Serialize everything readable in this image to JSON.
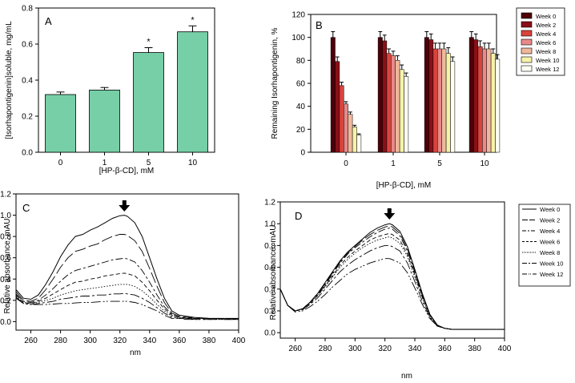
{
  "chart_data": [
    {
      "id": "A",
      "type": "bar",
      "panel_label": "A",
      "ylabel": "[Isorhapontigenin]soluble, mg/mL",
      "xlabel": "[HP-β-CD], mM",
      "categories": [
        "0",
        "1",
        "5",
        "10"
      ],
      "values": [
        0.32,
        0.345,
        0.553,
        0.668
      ],
      "errors": [
        0.014,
        0.014,
        0.027,
        0.033
      ],
      "annotations": [
        "",
        "",
        "*",
        "*"
      ],
      "ylim": [
        0,
        0.8
      ],
      "yticks": [
        "0.0",
        "0.2",
        "0.4",
        "0.6",
        "0.8"
      ],
      "color": "#76cfa6"
    },
    {
      "id": "B",
      "type": "bar",
      "panel_label": "B",
      "ylabel": "Remaining Isorhapontigenin, %",
      "xlabel": "[HP-β-CD], mM",
      "categories": [
        "0",
        "1",
        "5",
        "10"
      ],
      "ylim": [
        0,
        120
      ],
      "yticks": [
        "0",
        "20",
        "40",
        "60",
        "80",
        "100",
        "120"
      ],
      "series": [
        {
          "name": "Week 0",
          "color": "#4d0008",
          "values": [
            100,
            100,
            100,
            100
          ],
          "errors": [
            5,
            5,
            5,
            5
          ]
        },
        {
          "name": "Week 2",
          "color": "#8a0f17",
          "values": [
            79,
            97,
            98,
            98
          ],
          "errors": [
            4,
            5,
            5,
            5
          ]
        },
        {
          "name": "Week 4",
          "color": "#d8443c",
          "values": [
            58,
            86,
            90,
            92
          ],
          "errors": [
            3,
            4,
            5,
            5
          ]
        },
        {
          "name": "Week 6",
          "color": "#e88a8a",
          "values": [
            42,
            84,
            90,
            90
          ],
          "errors": [
            2,
            4,
            5,
            5
          ]
        },
        {
          "name": "Week 8",
          "color": "#f0b89a",
          "values": [
            33,
            80,
            90,
            90
          ],
          "errors": [
            2,
            4,
            5,
            5
          ]
        },
        {
          "name": "Week 10",
          "color": "#f6f2a8",
          "values": [
            22,
            72,
            86,
            86
          ],
          "errors": [
            1.5,
            4,
            5,
            4
          ]
        },
        {
          "name": "Week 12",
          "color": "#fffff4",
          "values": [
            15,
            66,
            79,
            81
          ],
          "errors": [
            1,
            3,
            4,
            4
          ]
        }
      ]
    },
    {
      "id": "C",
      "type": "line",
      "panel_label": "C",
      "ylabel": "Relative absorbance, mAU",
      "xlabel": "nm",
      "xlim": [
        250,
        400
      ],
      "ylim": [
        -0.08,
        1.2
      ],
      "xticks": [
        "260",
        "280",
        "300",
        "320",
        "340",
        "360",
        "380",
        "400"
      ],
      "yticks": [
        "0.0",
        "0.2",
        "0.4",
        "0.6",
        "0.8",
        "1.0",
        "1.2"
      ],
      "arrow_at_nm": 323,
      "x": [
        250,
        255,
        260,
        265,
        270,
        275,
        280,
        285,
        290,
        295,
        300,
        305,
        310,
        315,
        320,
        323,
        325,
        330,
        335,
        340,
        345,
        350,
        355,
        360,
        365,
        370,
        380,
        390,
        400
      ],
      "series": [
        {
          "name": "Week 0",
          "values": [
            0.3,
            0.22,
            0.21,
            0.25,
            0.35,
            0.47,
            0.61,
            0.72,
            0.8,
            0.82,
            0.86,
            0.89,
            0.93,
            0.97,
            0.995,
            1.0,
            0.99,
            0.93,
            0.8,
            0.6,
            0.4,
            0.22,
            0.1,
            0.06,
            0.05,
            0.04,
            0.03,
            0.03,
            0.03
          ]
        },
        {
          "name": "Week 2",
          "values": [
            0.28,
            0.2,
            0.19,
            0.22,
            0.3,
            0.4,
            0.51,
            0.6,
            0.66,
            0.68,
            0.71,
            0.73,
            0.77,
            0.8,
            0.82,
            0.82,
            0.81,
            0.76,
            0.66,
            0.5,
            0.33,
            0.18,
            0.08,
            0.05,
            0.04,
            0.04,
            0.03,
            0.03,
            0.03
          ]
        },
        {
          "name": "Week 4",
          "values": [
            0.26,
            0.19,
            0.18,
            0.2,
            0.25,
            0.31,
            0.38,
            0.44,
            0.48,
            0.5,
            0.52,
            0.54,
            0.56,
            0.58,
            0.59,
            0.595,
            0.59,
            0.56,
            0.48,
            0.37,
            0.25,
            0.14,
            0.07,
            0.04,
            0.04,
            0.03,
            0.03,
            0.03,
            0.03
          ]
        },
        {
          "name": "Week 6",
          "values": [
            0.25,
            0.18,
            0.17,
            0.19,
            0.22,
            0.26,
            0.3,
            0.34,
            0.37,
            0.38,
            0.4,
            0.41,
            0.43,
            0.44,
            0.45,
            0.455,
            0.45,
            0.43,
            0.37,
            0.29,
            0.2,
            0.12,
            0.06,
            0.04,
            0.03,
            0.03,
            0.03,
            0.03,
            0.02
          ]
        },
        {
          "name": "Week 8",
          "values": [
            0.24,
            0.18,
            0.17,
            0.18,
            0.2,
            0.22,
            0.25,
            0.27,
            0.29,
            0.3,
            0.31,
            0.32,
            0.33,
            0.34,
            0.35,
            0.35,
            0.35,
            0.33,
            0.29,
            0.23,
            0.16,
            0.1,
            0.05,
            0.04,
            0.03,
            0.03,
            0.03,
            0.02,
            0.02
          ]
        },
        {
          "name": "Week 10",
          "values": [
            0.23,
            0.17,
            0.16,
            0.17,
            0.18,
            0.19,
            0.21,
            0.22,
            0.23,
            0.24,
            0.24,
            0.25,
            0.25,
            0.26,
            0.26,
            0.265,
            0.26,
            0.25,
            0.22,
            0.18,
            0.13,
            0.08,
            0.04,
            0.03,
            0.03,
            0.02,
            0.02,
            0.02,
            0.02
          ]
        },
        {
          "name": "Week 12",
          "values": [
            0.22,
            0.17,
            0.16,
            0.16,
            0.16,
            0.165,
            0.17,
            0.17,
            0.175,
            0.18,
            0.18,
            0.185,
            0.19,
            0.19,
            0.19,
            0.19,
            0.19,
            0.18,
            0.16,
            0.13,
            0.1,
            0.06,
            0.03,
            0.03,
            0.02,
            0.02,
            0.02,
            0.02,
            0.02
          ]
        }
      ]
    },
    {
      "id": "D",
      "type": "line",
      "panel_label": "D",
      "ylabel": "Relative absorbance, mAU",
      "xlabel": "nm",
      "xlim": [
        250,
        400
      ],
      "ylim": [
        -0.05,
        1.2
      ],
      "xticks": [
        "260",
        "280",
        "300",
        "320",
        "340",
        "360",
        "380",
        "400"
      ],
      "yticks": [
        "0.0",
        "0.2",
        "0.4",
        "0.6",
        "0.8",
        "1.0",
        "1.2"
      ],
      "arrow_at_nm": 323,
      "legend": [
        "Week 0",
        "Week 2",
        "Week 4",
        "Week 6",
        "Week 8",
        "Week 10",
        "Week 12"
      ],
      "x": [
        250,
        255,
        260,
        265,
        270,
        275,
        280,
        285,
        290,
        295,
        300,
        305,
        310,
        315,
        320,
        323,
        325,
        330,
        335,
        340,
        345,
        350,
        355,
        360,
        365,
        370,
        380,
        390,
        400
      ],
      "series": [
        {
          "name": "Week 0",
          "values": [
            0.4,
            0.25,
            0.2,
            0.22,
            0.28,
            0.36,
            0.46,
            0.56,
            0.66,
            0.74,
            0.8,
            0.86,
            0.92,
            0.96,
            0.99,
            1.0,
            0.99,
            0.93,
            0.79,
            0.58,
            0.36,
            0.17,
            0.07,
            0.04,
            0.03,
            0.03,
            0.03,
            0.03,
            0.03
          ]
        },
        {
          "name": "Week 2",
          "values": [
            0.4,
            0.25,
            0.2,
            0.22,
            0.28,
            0.36,
            0.45,
            0.55,
            0.65,
            0.73,
            0.79,
            0.85,
            0.9,
            0.94,
            0.97,
            0.98,
            0.97,
            0.91,
            0.77,
            0.57,
            0.35,
            0.17,
            0.07,
            0.04,
            0.03,
            0.03,
            0.03,
            0.03,
            0.03
          ]
        },
        {
          "name": "Week 4",
          "values": [
            0.4,
            0.25,
            0.2,
            0.22,
            0.28,
            0.35,
            0.44,
            0.54,
            0.64,
            0.72,
            0.78,
            0.83,
            0.88,
            0.92,
            0.95,
            0.96,
            0.95,
            0.89,
            0.75,
            0.55,
            0.34,
            0.16,
            0.07,
            0.04,
            0.03,
            0.03,
            0.03,
            0.03,
            0.03
          ]
        },
        {
          "name": "Week 6",
          "values": [
            0.4,
            0.25,
            0.2,
            0.22,
            0.27,
            0.34,
            0.43,
            0.52,
            0.62,
            0.69,
            0.75,
            0.8,
            0.85,
            0.88,
            0.9,
            0.91,
            0.9,
            0.85,
            0.72,
            0.53,
            0.33,
            0.16,
            0.07,
            0.04,
            0.03,
            0.03,
            0.03,
            0.03,
            0.03
          ]
        },
        {
          "name": "Week 8",
          "values": [
            0.4,
            0.25,
            0.2,
            0.22,
            0.27,
            0.34,
            0.42,
            0.51,
            0.6,
            0.67,
            0.73,
            0.78,
            0.82,
            0.85,
            0.87,
            0.88,
            0.87,
            0.82,
            0.7,
            0.51,
            0.32,
            0.15,
            0.06,
            0.04,
            0.03,
            0.03,
            0.03,
            0.03,
            0.03
          ]
        },
        {
          "name": "Week 10",
          "values": [
            0.4,
            0.25,
            0.2,
            0.21,
            0.26,
            0.32,
            0.4,
            0.48,
            0.56,
            0.62,
            0.67,
            0.71,
            0.75,
            0.78,
            0.8,
            0.8,
            0.79,
            0.75,
            0.64,
            0.47,
            0.29,
            0.14,
            0.06,
            0.04,
            0.03,
            0.03,
            0.03,
            0.03,
            0.03
          ]
        },
        {
          "name": "Week 12",
          "values": [
            0.4,
            0.25,
            0.19,
            0.2,
            0.24,
            0.29,
            0.35,
            0.42,
            0.48,
            0.54,
            0.58,
            0.61,
            0.64,
            0.66,
            0.68,
            0.68,
            0.67,
            0.64,
            0.55,
            0.41,
            0.26,
            0.13,
            0.06,
            0.04,
            0.03,
            0.03,
            0.03,
            0.03,
            0.03
          ]
        }
      ]
    }
  ]
}
